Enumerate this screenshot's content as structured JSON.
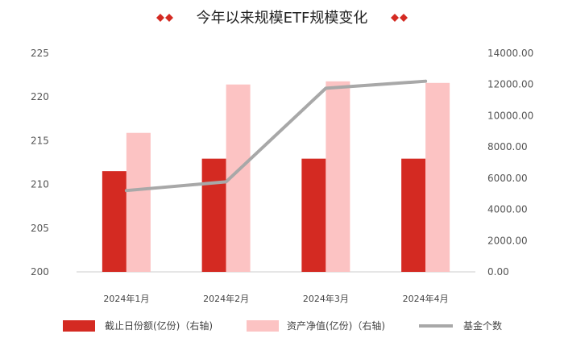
{
  "chart_data": {
    "type": "bar",
    "title": "今年以来规模ETF规模变化",
    "categories": [
      "2024年1月",
      "2024年2月",
      "2024年3月",
      "2024年4月"
    ],
    "left_axis": {
      "ylim": [
        200,
        225
      ],
      "ticks": [
        "200",
        "205",
        "210",
        "215",
        "220",
        "225"
      ]
    },
    "right_axis": {
      "ylim": [
        0,
        14000
      ],
      "ticks": [
        "0.00",
        "2000.00",
        "4000.00",
        "6000.00",
        "8000.00",
        "10000.00",
        "12000.00",
        "14000.00"
      ]
    },
    "series": [
      {
        "name": "截止日份额(亿份)（右轴)",
        "type": "bar",
        "axis": "right",
        "color": "#d42a22",
        "values": [
          6450,
          7250,
          7250,
          7250
        ]
      },
      {
        "name": "资产净值(亿份)（右轴)",
        "type": "bar",
        "axis": "right",
        "color": "#fcc3c3",
        "values": [
          8900,
          12000,
          12200,
          12100
        ]
      },
      {
        "name": "基金个数",
        "type": "line",
        "axis": "left",
        "color": "#a8a8a8",
        "values": [
          209.3,
          210.3,
          221.0,
          221.8
        ]
      }
    ],
    "grid": false,
    "legend_position": "bottom"
  }
}
